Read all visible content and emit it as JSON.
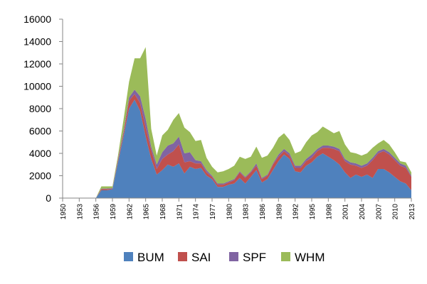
{
  "chart_data": {
    "type": "area",
    "stacked": true,
    "x": [
      1950,
      1951,
      1952,
      1953,
      1954,
      1955,
      1956,
      1957,
      1958,
      1959,
      1960,
      1961,
      1962,
      1963,
      1964,
      1965,
      1966,
      1967,
      1968,
      1969,
      1970,
      1971,
      1972,
      1973,
      1974,
      1975,
      1976,
      1977,
      1978,
      1979,
      1980,
      1981,
      1982,
      1983,
      1984,
      1985,
      1986,
      1987,
      1988,
      1989,
      1990,
      1991,
      1992,
      1993,
      1994,
      1995,
      1996,
      1997,
      1998,
      1999,
      2000,
      2001,
      2002,
      2003,
      2004,
      2005,
      2006,
      2007,
      2008,
      2009,
      2010,
      2011,
      2012,
      2013
    ],
    "xtick_labels": [
      "1950",
      "1953",
      "1956",
      "1959",
      "1962",
      "1965",
      "1968",
      "1971",
      "1974",
      "1977",
      "1980",
      "1983",
      "1986",
      "1989",
      "1992",
      "1995",
      "1998",
      "2001",
      "2004",
      "2007",
      "2010",
      "2013"
    ],
    "ylim": [
      0,
      16000
    ],
    "yticks": [
      0,
      2000,
      4000,
      6000,
      8000,
      10000,
      12000,
      14000,
      16000
    ],
    "legend_position": "bottom",
    "series": [
      {
        "name": "BUM",
        "color": "#4f81bd",
        "values": [
          0,
          0,
          0,
          0,
          0,
          0,
          0,
          700,
          700,
          800,
          3200,
          5500,
          8000,
          8800,
          7800,
          5500,
          3500,
          2100,
          2500,
          3000,
          2800,
          3100,
          2200,
          2800,
          2600,
          2700,
          2000,
          1700,
          1000,
          1000,
          1200,
          1300,
          1800,
          1300,
          1900,
          2500,
          1400,
          1700,
          2500,
          3300,
          3900,
          3500,
          2400,
          2300,
          2900,
          3200,
          3700,
          4000,
          3700,
          3400,
          3000,
          2300,
          1800,
          2100,
          1900,
          2100,
          1800,
          2600,
          2600,
          2300,
          1900,
          1500,
          1300,
          700
        ]
      },
      {
        "name": "SAI",
        "color": "#c0504d",
        "values": [
          0,
          0,
          0,
          0,
          0,
          0,
          0,
          100,
          100,
          50,
          200,
          300,
          700,
          500,
          700,
          800,
          800,
          500,
          1000,
          900,
          1400,
          1700,
          1000,
          500,
          500,
          400,
          300,
          200,
          200,
          200,
          200,
          300,
          500,
          500,
          400,
          400,
          300,
          300,
          500,
          400,
          300,
          300,
          300,
          400,
          400,
          400,
          500,
          500,
          800,
          1000,
          1200,
          1000,
          1200,
          800,
          800,
          800,
          1600,
          1400,
          1600,
          1600,
          1500,
          1400,
          1400,
          1200
        ]
      },
      {
        "name": "SPF",
        "color": "#8064a2",
        "values": [
          0,
          0,
          0,
          0,
          0,
          0,
          0,
          50,
          50,
          50,
          100,
          200,
          300,
          400,
          600,
          800,
          300,
          400,
          600,
          800,
          700,
          700,
          800,
          800,
          300,
          200,
          200,
          100,
          100,
          100,
          100,
          100,
          100,
          100,
          100,
          200,
          100,
          100,
          100,
          200,
          200,
          200,
          200,
          200,
          200,
          300,
          200,
          200,
          200,
          200,
          200,
          200,
          200,
          200,
          200,
          200,
          200,
          200,
          200,
          200,
          200,
          200,
          200,
          100
        ]
      },
      {
        "name": "WHM",
        "color": "#9bbb59",
        "values": [
          0,
          0,
          0,
          0,
          0,
          0,
          0,
          200,
          200,
          150,
          300,
          1000,
          1400,
          2800,
          3400,
          6400,
          1600,
          800,
          1500,
          1400,
          2100,
          2100,
          2300,
          1800,
          1700,
          1900,
          1100,
          800,
          1000,
          1100,
          1100,
          1200,
          1300,
          1600,
          1300,
          1500,
          1800,
          1700,
          1400,
          1500,
          1400,
          1200,
          1100,
          1300,
          1500,
          1700,
          1500,
          1700,
          1400,
          1200,
          1600,
          1300,
          900,
          900,
          900,
          900,
          900,
          700,
          800,
          700,
          500,
          200,
          300,
          300
        ]
      }
    ]
  }
}
